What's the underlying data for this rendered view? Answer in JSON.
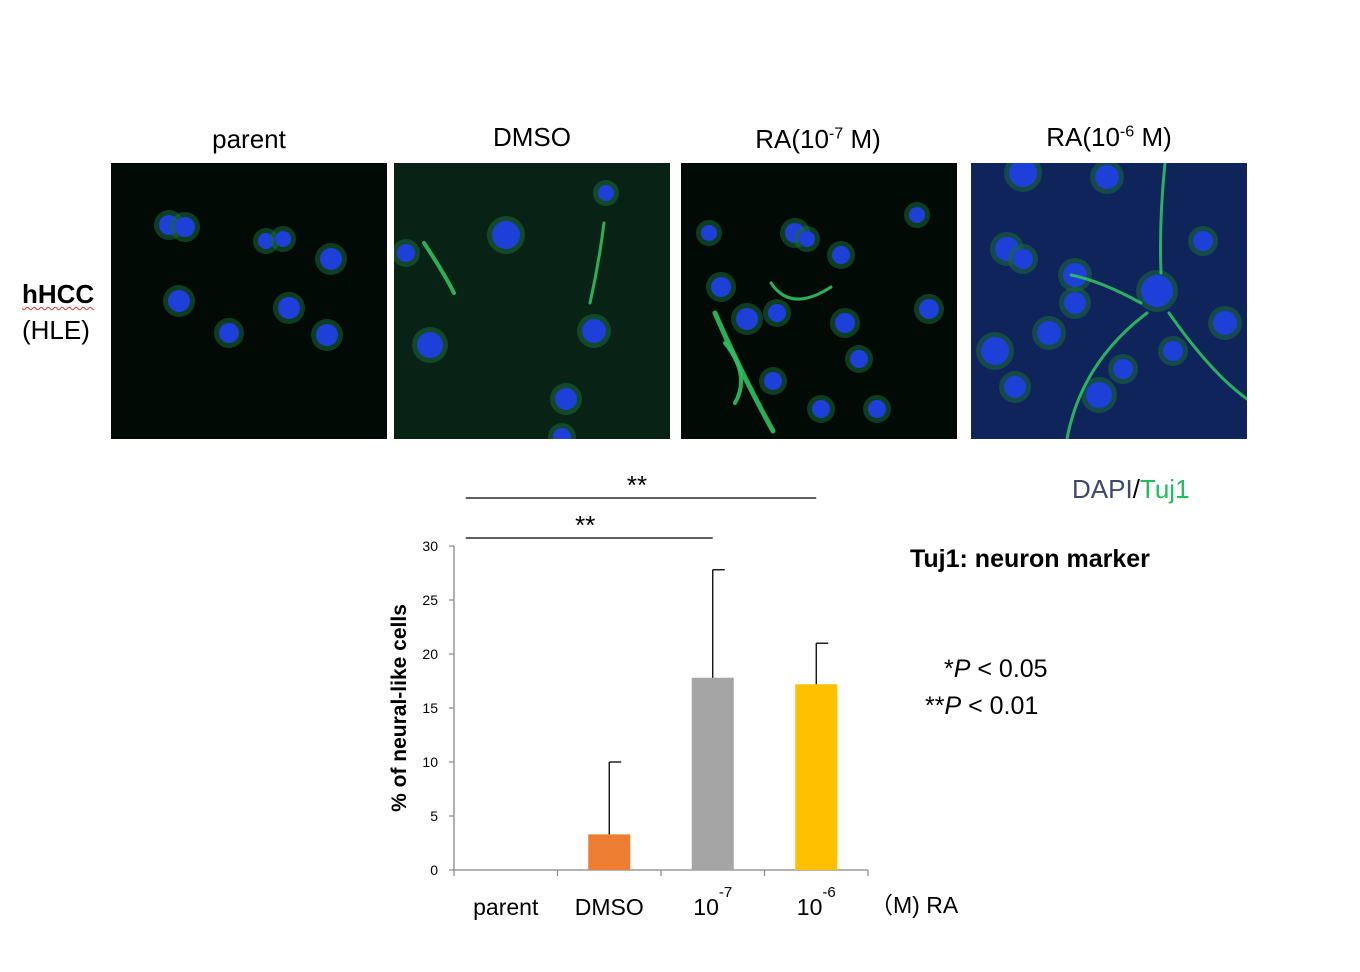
{
  "panels": {
    "row_label": "hHCC",
    "row_sublabel": "(HLE)",
    "columns": [
      {
        "title": "parent",
        "kind": "parent"
      },
      {
        "title_prefix": "RA(10",
        "title_exp": "-7",
        "title_suffix": " M)",
        "kind": "ra7"
      },
      {
        "title": "DMSO",
        "kind": "dmso"
      },
      {
        "title_prefix": "RA(10",
        "title_exp": "-6",
        "title_suffix": " M)",
        "kind": "ra6"
      }
    ],
    "stain_dapi": "DAPI",
    "stain_sep": "/",
    "stain_tuj1": "Tuj1",
    "dapi_color": "#3d4a6b",
    "tuj1_color": "#1fbf5b"
  },
  "note": "Tuj1: neuron marker",
  "significance": [
    {
      "stars": "*",
      "p": "P",
      "rest": " < 0.05"
    },
    {
      "stars": "**",
      "p": "P",
      "rest": " < 0.01"
    }
  ],
  "chart_data": {
    "type": "bar",
    "categories": [
      "parent",
      "DMSO",
      "10-7",
      "10-6"
    ],
    "category_labels": [
      {
        "base": "parent",
        "exp": ""
      },
      {
        "base": "DMSO",
        "exp": ""
      },
      {
        "base": "10",
        "exp": "-7"
      },
      {
        "base": "10",
        "exp": "-6"
      }
    ],
    "values": [
      0,
      3.3,
      17.8,
      17.2
    ],
    "error_upper": [
      0,
      10.0,
      27.8,
      21.0
    ],
    "colors": [
      "#ffffff",
      "#ed7d31",
      "#a5a5a5",
      "#ffc000"
    ],
    "ylabel": "% of neural-like cells",
    "xlabel": "（M) RA",
    "ylim": [
      0,
      30
    ],
    "yticks": [
      0,
      5,
      10,
      15,
      20,
      25,
      30
    ],
    "grid": false,
    "brackets": [
      {
        "from": 0,
        "to": 2,
        "label": "**"
      },
      {
        "from": 0,
        "to": 3,
        "label": "**"
      }
    ]
  }
}
